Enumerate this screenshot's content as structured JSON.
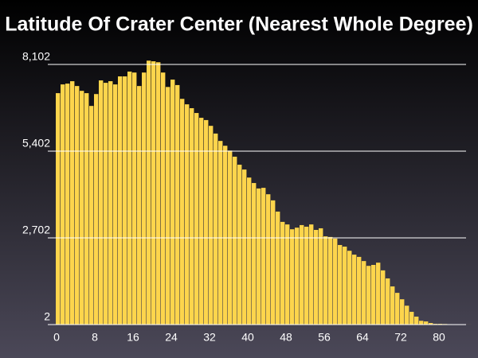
{
  "chart_data": {
    "type": "histogram",
    "title": "Latitude Of Crater Center (Nearest Whole Degree)",
    "color": "#fdd54c",
    "bins": [
      0,
      1,
      2,
      3,
      4,
      5,
      6,
      7,
      8,
      9,
      10,
      11,
      12,
      13,
      14,
      15,
      16,
      17,
      18,
      19,
      20,
      21,
      22,
      23,
      24,
      25,
      26,
      27,
      28,
      29,
      30,
      31,
      32,
      33,
      34,
      35,
      36,
      37,
      38,
      39,
      40,
      41,
      42,
      43,
      44,
      45,
      46,
      47,
      48,
      49,
      50,
      51,
      52,
      53,
      54,
      55,
      56,
      57,
      58,
      59,
      60,
      61,
      62,
      63,
      64,
      65,
      66,
      67,
      68,
      69,
      70,
      71,
      72,
      73,
      74,
      75,
      76,
      77,
      78,
      79,
      80,
      81,
      82,
      83,
      84,
      85,
      86,
      87
    ],
    "counts": [
      7208,
      7480,
      7505,
      7580,
      7430,
      7280,
      7208,
      6810,
      7180,
      7605,
      7530,
      7580,
      7480,
      7730,
      7730,
      7880,
      7850,
      7430,
      7850,
      8220,
      8200,
      8170,
      7850,
      7400,
      7630,
      7460,
      7030,
      6860,
      6740,
      6590,
      6440,
      6370,
      6190,
      5950,
      5720,
      5570,
      5420,
      5230,
      4980,
      4830,
      4580,
      4410,
      4240,
      4260,
      4060,
      3870,
      3520,
      3200,
      3120,
      2970,
      3020,
      3100,
      3050,
      3120,
      2950,
      3000,
      2750,
      2730,
      2680,
      2480,
      2430,
      2300,
      2180,
      2110,
      1980,
      1830,
      1860,
      1930,
      1690,
      1440,
      1190,
      990,
      790,
      590,
      400,
      250,
      120,
      100,
      50,
      25,
      25,
      20,
      15,
      10,
      8,
      5,
      3
    ],
    "xlim": [
      0,
      87
    ],
    "xticks": [
      0,
      8,
      16,
      24,
      32,
      40,
      48,
      56,
      64,
      72,
      80
    ],
    "ylim": [
      2,
      8102
    ],
    "yticks": [
      2,
      {
        "value": 2702,
        "label": "2,702"
      },
      {
        "value": 5402,
        "label": "5,402"
      },
      {
        "value": 8102,
        "label": "8,102"
      }
    ],
    "grid": true
  }
}
